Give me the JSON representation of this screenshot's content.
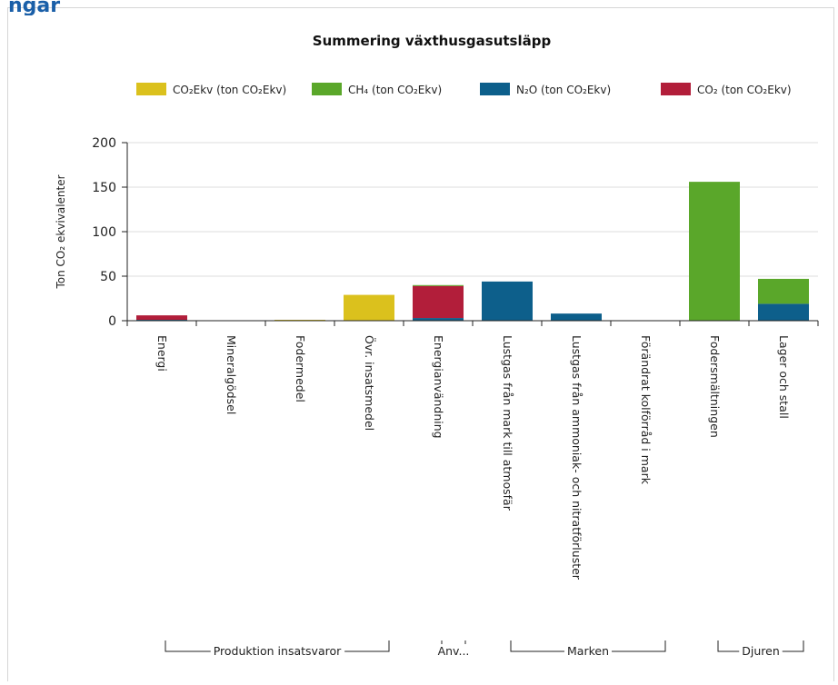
{
  "page": {
    "header_fragment": "ngar"
  },
  "chart_data": {
    "type": "bar",
    "stacked": true,
    "title": "Summering växthusgasutsläpp",
    "ylabel": "Ton CO₂ ekvivalenter",
    "xlabel": "",
    "ylim": [
      0,
      200
    ],
    "yticks": [
      0,
      50,
      100,
      150,
      200
    ],
    "grid": true,
    "legend_position": "top",
    "categories": [
      "Energi",
      "Mineralgödsel",
      "Fodermedel",
      "Övr. insatsmedel",
      "Energianvändning",
      "Lustgas från mark till atmosfär",
      "Lustgas från ammoniak- och nitratförluster",
      "Förändrat kolförråd i mark",
      "Fodersmältningen",
      "Lager och stall"
    ],
    "series": [
      {
        "name": "CO₂Ekv (ton CO₂Ekv)",
        "color": "#dbc11d",
        "values": [
          0,
          0,
          1,
          29,
          0,
          0,
          0,
          0,
          0,
          0
        ]
      },
      {
        "name": "CH₄ (ton CO₂Ekv)",
        "color": "#5aa72a",
        "values": [
          0,
          0,
          0,
          0,
          1,
          0,
          0,
          0,
          156,
          28
        ]
      },
      {
        "name": "N₂O (ton CO₂Ekv)",
        "color": "#0d5f8b",
        "values": [
          1,
          0,
          0,
          0,
          3,
          44,
          8,
          0,
          0,
          19
        ]
      },
      {
        "name": "CO₂ (ton CO₂Ekv)",
        "color": "#b21e3a",
        "values": [
          5,
          0,
          0,
          0,
          36,
          0,
          0,
          0,
          0,
          0
        ]
      }
    ],
    "groups": [
      {
        "label": "Produktion insatsvaror",
        "from": 0,
        "to": 3
      },
      {
        "label": "Anv...",
        "from": 4,
        "to": 4
      },
      {
        "label": "Marken",
        "from": 5,
        "to": 7
      },
      {
        "label": "Djuren",
        "from": 8,
        "to": 9
      }
    ]
  }
}
